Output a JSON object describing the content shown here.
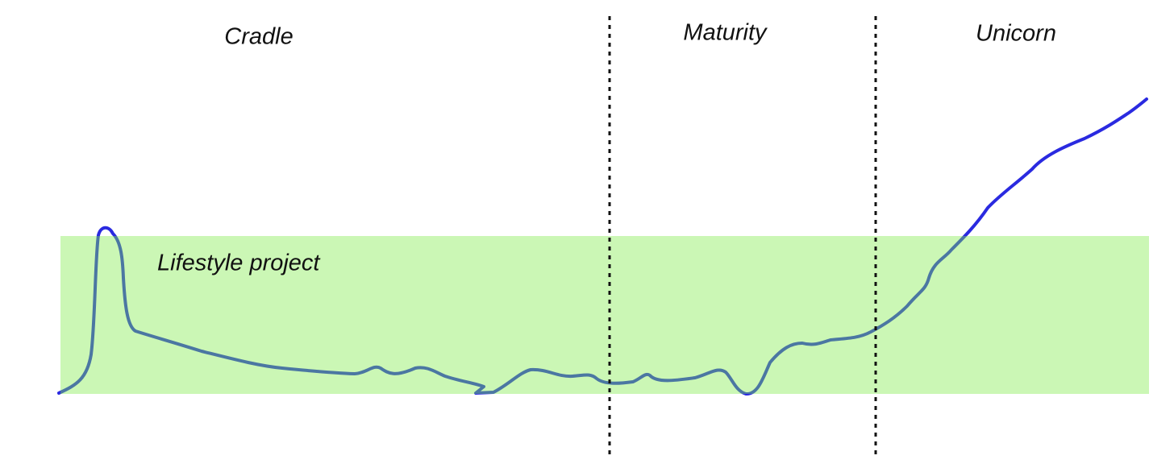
{
  "sections": [
    {
      "label": "Cradle"
    },
    {
      "label": "Maturity"
    },
    {
      "label": "Unicorn"
    }
  ],
  "band": {
    "label": "Lifestyle project"
  }
}
